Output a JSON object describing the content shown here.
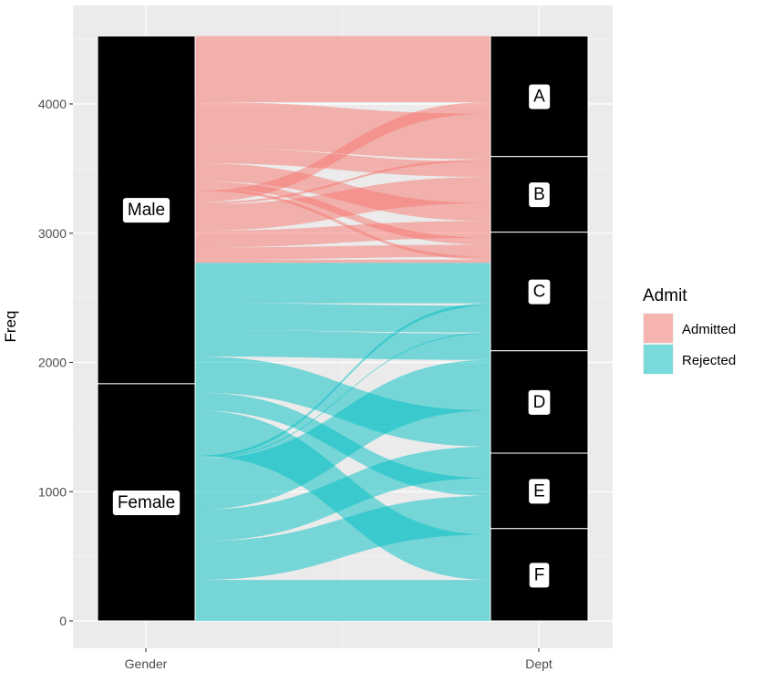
{
  "chart_data": {
    "type": "alluvial",
    "ylabel": "Freq",
    "xlabel": "",
    "axes": [
      "Gender",
      "Dept"
    ],
    "ylim": [
      0,
      4526
    ],
    "yticks": [
      0,
      1000,
      2000,
      3000,
      4000
    ],
    "grid": true,
    "legend": {
      "title": "Admit",
      "position": "right",
      "items": [
        {
          "label": "Admitted",
          "color": "#F8766D"
        },
        {
          "label": "Rejected",
          "color": "#00BFC4"
        }
      ]
    },
    "strata": {
      "Gender": [
        "Male",
        "Female"
      ],
      "Dept": [
        "A",
        "B",
        "C",
        "D",
        "E",
        "F"
      ]
    },
    "flows": [
      {
        "admit": "Admitted",
        "gender": "Male",
        "dept": "A",
        "freq": 512
      },
      {
        "admit": "Admitted",
        "gender": "Male",
        "dept": "B",
        "freq": 353
      },
      {
        "admit": "Admitted",
        "gender": "Male",
        "dept": "C",
        "freq": 120
      },
      {
        "admit": "Admitted",
        "gender": "Male",
        "dept": "D",
        "freq": 138
      },
      {
        "admit": "Admitted",
        "gender": "Male",
        "dept": "E",
        "freq": 53
      },
      {
        "admit": "Admitted",
        "gender": "Male",
        "dept": "F",
        "freq": 22
      },
      {
        "admit": "Rejected",
        "gender": "Male",
        "dept": "A",
        "freq": 313
      },
      {
        "admit": "Rejected",
        "gender": "Male",
        "dept": "B",
        "freq": 207
      },
      {
        "admit": "Rejected",
        "gender": "Male",
        "dept": "C",
        "freq": 205
      },
      {
        "admit": "Rejected",
        "gender": "Male",
        "dept": "D",
        "freq": 279
      },
      {
        "admit": "Rejected",
        "gender": "Male",
        "dept": "E",
        "freq": 138
      },
      {
        "admit": "Rejected",
        "gender": "Male",
        "dept": "F",
        "freq": 351
      },
      {
        "admit": "Admitted",
        "gender": "Female",
        "dept": "A",
        "freq": 89
      },
      {
        "admit": "Admitted",
        "gender": "Female",
        "dept": "B",
        "freq": 17
      },
      {
        "admit": "Admitted",
        "gender": "Female",
        "dept": "C",
        "freq": 202
      },
      {
        "admit": "Admitted",
        "gender": "Female",
        "dept": "D",
        "freq": 131
      },
      {
        "admit": "Admitted",
        "gender": "Female",
        "dept": "E",
        "freq": 94
      },
      {
        "admit": "Admitted",
        "gender": "Female",
        "dept": "F",
        "freq": 24
      },
      {
        "admit": "Rejected",
        "gender": "Female",
        "dept": "A",
        "freq": 19
      },
      {
        "admit": "Rejected",
        "gender": "Female",
        "dept": "B",
        "freq": 8
      },
      {
        "admit": "Rejected",
        "gender": "Female",
        "dept": "C",
        "freq": 391
      },
      {
        "admit": "Rejected",
        "gender": "Female",
        "dept": "D",
        "freq": 244
      },
      {
        "admit": "Rejected",
        "gender": "Female",
        "dept": "E",
        "freq": 299
      },
      {
        "admit": "Rejected",
        "gender": "Female",
        "dept": "F",
        "freq": 317
      }
    ]
  }
}
